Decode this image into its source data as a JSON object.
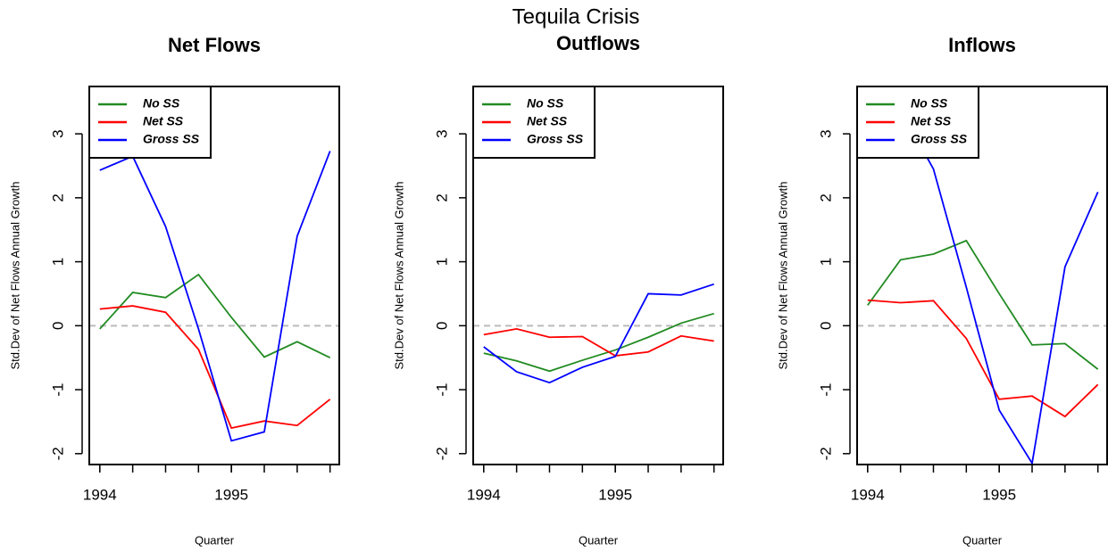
{
  "title": "Tequila Crisis",
  "chart_data": [
    {
      "type": "line",
      "title": "Net Flows",
      "xlabel": "Quarter",
      "ylabel": "Std.Dev of Net Flows Annual Growth",
      "x": [
        1994,
        1994.25,
        1994.5,
        1994.75,
        1995,
        1995.25,
        1995.5,
        1995.75
      ],
      "xlim": [
        1993.92,
        1995.82
      ],
      "xticks": [
        1994,
        1995
      ],
      "ylim": [
        -2.17,
        3.74
      ],
      "yticks": [
        -2,
        -1,
        0,
        1,
        2,
        3
      ],
      "hline": 0,
      "legend": "top-left",
      "series": [
        {
          "name": "No SS",
          "color": "#228b22",
          "values": [
            -0.05,
            0.52,
            0.44,
            0.8,
            0.13,
            -0.49,
            -0.25,
            -0.5
          ]
        },
        {
          "name": "Net SS",
          "color": "#ff0000",
          "values": [
            0.26,
            0.31,
            0.21,
            -0.37,
            -1.6,
            -1.49,
            -1.56,
            -1.15
          ]
        },
        {
          "name": "Gross SS",
          "color": "#0000ff",
          "values": [
            2.43,
            2.65,
            1.55,
            -0.05,
            -1.8,
            -1.66,
            1.4,
            2.73
          ]
        }
      ]
    },
    {
      "type": "line",
      "title": "Outflows",
      "xlabel": "Quarter",
      "ylabel": "Std.Dev of Net Flows Annual Growth",
      "x": [
        1994,
        1994.25,
        1994.5,
        1994.75,
        1995,
        1995.25,
        1995.5,
        1995.75
      ],
      "xlim": [
        1993.92,
        1995.82
      ],
      "xticks": [
        1994,
        1995
      ],
      "ylim": [
        -2.17,
        3.74
      ],
      "yticks": [
        -2,
        -1,
        0,
        1,
        2,
        3
      ],
      "hline": 0,
      "legend": "top-left",
      "series": [
        {
          "name": "No SS",
          "color": "#228b22",
          "values": [
            -0.43,
            -0.55,
            -0.71,
            -0.54,
            -0.38,
            -0.18,
            0.04,
            0.19
          ]
        },
        {
          "name": "Net SS",
          "color": "#ff0000",
          "values": [
            -0.14,
            -0.05,
            -0.18,
            -0.17,
            -0.47,
            -0.41,
            -0.16,
            -0.24
          ]
        },
        {
          "name": "Gross SS",
          "color": "#0000ff",
          "values": [
            -0.33,
            -0.72,
            -0.89,
            -0.65,
            -0.48,
            0.5,
            0.48,
            0.65
          ]
        }
      ]
    },
    {
      "type": "line",
      "title": "Inflows",
      "xlabel": "Quarter",
      "ylabel": "Std.Dev of Net Flows Annual Growth",
      "x": [
        1994,
        1994.25,
        1994.5,
        1994.75,
        1995,
        1995.25,
        1995.5,
        1995.75
      ],
      "xlim": [
        1993.92,
        1995.82
      ],
      "xticks": [
        1994,
        1995
      ],
      "ylim": [
        -2.17,
        3.74
      ],
      "yticks": [
        -2,
        -1,
        0,
        1,
        2,
        3
      ],
      "hline": 0,
      "legend": "top-left",
      "series": [
        {
          "name": "No SS",
          "color": "#228b22",
          "values": [
            0.32,
            1.03,
            1.12,
            1.33,
            0.5,
            -0.3,
            -0.28,
            -0.68
          ]
        },
        {
          "name": "Net SS",
          "color": "#ff0000",
          "values": [
            0.4,
            0.36,
            0.39,
            -0.2,
            -1.15,
            -1.1,
            -1.42,
            -0.92
          ]
        },
        {
          "name": "Gross SS",
          "color": "#0000ff",
          "values": [
            2.77,
            3.38,
            2.45,
            0.6,
            -1.32,
            -2.15,
            0.92,
            2.09
          ]
        }
      ]
    }
  ]
}
